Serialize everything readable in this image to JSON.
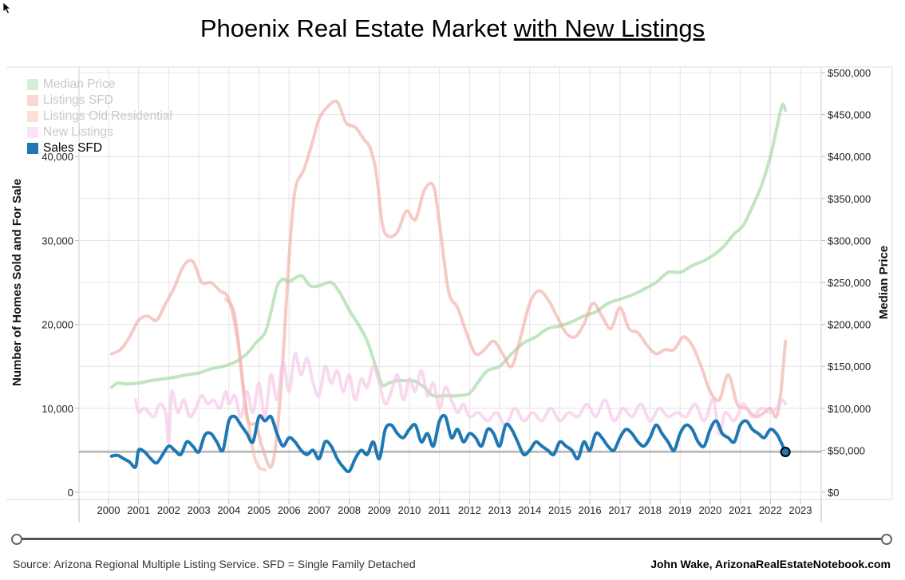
{
  "title": {
    "main": "Phoenix Real Estate Market ",
    "underlined": "with New Listings"
  },
  "legend": [
    {
      "label": "Median Price",
      "color": "#a6d8a6",
      "active": false
    },
    {
      "label": "Listings SFD",
      "color": "#f0a8a0",
      "active": false
    },
    {
      "label": "Listings Old Residential",
      "color": "#f3b7ae",
      "active": false
    },
    {
      "label": "New Listings",
      "color": "#f6c4e6",
      "active": false
    },
    {
      "label": "Sales SFD",
      "color": "#1f77b4",
      "active": true
    }
  ],
  "footer": {
    "source": "Source: Arizona Regional Multiple Listing Service. SFD = Single Family Detached",
    "credit": "John Wake, ArizonaRealEstateNotebook.com"
  },
  "chart_data": {
    "type": "line",
    "ylabel": "Number of Homes Sold and For Sale",
    "y2label": "Median Price",
    "ylim": [
      0,
      50000
    ],
    "y2lim": [
      0,
      500000
    ],
    "xlim": [
      1999.0,
      2023.7
    ],
    "y_ticks": [
      {
        "value": 0,
        "label": "0"
      },
      {
        "value": 10000,
        "label": "10,000"
      },
      {
        "value": 20000,
        "label": "20,000"
      },
      {
        "value": 30000,
        "label": "30,000"
      },
      {
        "value": 40000,
        "label": "40,000"
      }
    ],
    "y2_ticks": [
      {
        "value": 0,
        "label": "$0"
      },
      {
        "value": 50000,
        "label": "$50,000"
      },
      {
        "value": 100000,
        "label": "$100,000"
      },
      {
        "value": 150000,
        "label": "$150,000"
      },
      {
        "value": 200000,
        "label": "$200,000"
      },
      {
        "value": 250000,
        "label": "$250,000"
      },
      {
        "value": 300000,
        "label": "$300,000"
      },
      {
        "value": 350000,
        "label": "$350,000"
      },
      {
        "value": 400000,
        "label": "$400,000"
      },
      {
        "value": 450000,
        "label": "$450,000"
      },
      {
        "value": 500000,
        "label": "$500,000"
      }
    ],
    "x_ticks": [
      "2000",
      "2001",
      "2002",
      "2003",
      "2004",
      "2005",
      "2006",
      "2007",
      "2008",
      "2009",
      "2010",
      "2011",
      "2012",
      "2013",
      "2014",
      "2015",
      "2016",
      "2017",
      "2018",
      "2019",
      "2020",
      "2021",
      "2022",
      "2023"
    ],
    "reference_line": {
      "y": 4800
    },
    "series": [
      {
        "name": "Median Price",
        "axis": "right",
        "color": "#a6d8a6",
        "opacity": 0.7,
        "x": [
          2000.1,
          2000.3,
          2000.6,
          2001.0,
          2001.4,
          2001.8,
          2002.2,
          2002.6,
          2003.0,
          2003.4,
          2003.8,
          2004.2,
          2004.6,
          2004.9,
          2005.2,
          2005.4,
          2005.6,
          2005.8,
          2006.0,
          2006.4,
          2006.7,
          2007.0,
          2007.4,
          2007.7,
          2008.0,
          2008.3,
          2008.6,
          2008.9,
          2009.1,
          2009.3,
          2009.6,
          2009.9,
          2010.2,
          2010.5,
          2010.8,
          2011.2,
          2011.6,
          2012.0,
          2012.3,
          2012.6,
          2013.0,
          2013.4,
          2013.8,
          2014.2,
          2014.6,
          2015.0,
          2015.4,
          2015.8,
          2016.2,
          2016.6,
          2017.0,
          2017.4,
          2017.8,
          2018.2,
          2018.6,
          2019.0,
          2019.4,
          2019.8,
          2020.2,
          2020.5,
          2020.8,
          2021.1,
          2021.4,
          2021.7,
          2022.0,
          2022.25,
          2022.4,
          2022.5
        ],
        "y": [
          125000,
          130000,
          129000,
          130000,
          133000,
          135000,
          137000,
          140000,
          142000,
          147000,
          150000,
          155000,
          165000,
          178000,
          190000,
          215000,
          245000,
          254000,
          251000,
          258000,
          246000,
          246000,
          250000,
          237000,
          217000,
          200000,
          180000,
          148000,
          128000,
          130000,
          133000,
          133000,
          132000,
          125000,
          115000,
          115000,
          115000,
          118000,
          132000,
          145000,
          150000,
          165000,
          178000,
          185000,
          195000,
          198000,
          203000,
          210000,
          215000,
          225000,
          230000,
          235000,
          242000,
          250000,
          262000,
          262000,
          270000,
          276000,
          285000,
          295000,
          308000,
          318000,
          340000,
          365000,
          400000,
          440000,
          462000,
          455000
        ]
      },
      {
        "name": "Listings SFD",
        "axis": "left",
        "color": "#f0a8a0",
        "opacity": 0.6,
        "x": [
          2000.1,
          2000.4,
          2000.7,
          2001.0,
          2001.3,
          2001.6,
          2001.9,
          2002.2,
          2002.5,
          2002.8,
          2003.1,
          2003.4,
          2003.7,
          2004.0,
          2004.3,
          2004.6,
          2004.9,
          2005.1,
          2005.4,
          2005.6,
          2005.8,
          2006.0,
          2006.2,
          2006.5,
          2006.8,
          2007.0,
          2007.3,
          2007.6,
          2007.9,
          2008.2,
          2008.5,
          2008.7,
          2008.9,
          2009.1,
          2009.3,
          2009.6,
          2009.9,
          2010.2,
          2010.5,
          2010.8,
          2011.0,
          2011.3,
          2011.6,
          2011.9,
          2012.2,
          2012.5,
          2012.8,
          2013.1,
          2013.4,
          2013.7,
          2014.0,
          2014.3,
          2014.6,
          2014.9,
          2015.2,
          2015.5,
          2015.8,
          2016.1,
          2016.4,
          2016.7,
          2017.0,
          2017.3,
          2017.6,
          2017.9,
          2018.2,
          2018.5,
          2018.8,
          2019.1,
          2019.4,
          2019.7,
          2020.0,
          2020.3,
          2020.6,
          2020.9,
          2021.2,
          2021.5,
          2021.8,
          2022.0,
          2022.2,
          2022.35,
          2022.5
        ],
        "y": [
          16500,
          17000,
          18500,
          20500,
          21000,
          20500,
          22500,
          24500,
          27000,
          27500,
          25000,
          25000,
          24000,
          23000,
          18000,
          9000,
          8000,
          5500,
          3000,
          7000,
          16000,
          28000,
          36000,
          38500,
          42000,
          44500,
          46000,
          46500,
          44000,
          43500,
          42000,
          41000,
          38000,
          32000,
          30500,
          31000,
          33500,
          32500,
          36000,
          36500,
          32000,
          24000,
          22000,
          19000,
          16500,
          17000,
          18000,
          16500,
          15000,
          18500,
          22500,
          24000,
          23000,
          21000,
          19000,
          18500,
          20000,
          22500,
          21000,
          19500,
          22000,
          19500,
          19000,
          17500,
          16500,
          17000,
          17000,
          18500,
          17500,
          15000,
          12000,
          11000,
          14000,
          10500,
          10000,
          9000,
          9500,
          10000,
          9000,
          12000,
          18000
        ]
      },
      {
        "name": "Listings Old Residential",
        "axis": "left",
        "color": "#f3b7ae",
        "opacity": 0.6,
        "x": [
          2003.9,
          2004.2,
          2004.5,
          2004.8,
          2005.0,
          2005.2
        ],
        "y": [
          23000,
          21000,
          12000,
          5000,
          3000,
          2700
        ]
      },
      {
        "name": "New Listings",
        "axis": "left",
        "color": "#f6c4e6",
        "opacity": 0.65,
        "x": [
          2000.9,
          2001.0,
          2001.2,
          2001.5,
          2001.7,
          2001.9,
          2002.0,
          2002.1,
          2002.3,
          2002.5,
          2002.7,
          2002.9,
          2003.1,
          2003.3,
          2003.5,
          2003.7,
          2003.9,
          2004.0,
          2004.2,
          2004.4,
          2004.6,
          2004.8,
          2005.0,
          2005.2,
          2005.4,
          2005.6,
          2005.8,
          2006.0,
          2006.2,
          2006.4,
          2006.6,
          2006.8,
          2007.0,
          2007.2,
          2007.4,
          2007.6,
          2007.8,
          2008.0,
          2008.2,
          2008.4,
          2008.6,
          2008.8,
          2009.0,
          2009.2,
          2009.4,
          2009.6,
          2009.8,
          2010.0,
          2010.2,
          2010.4,
          2010.6,
          2010.8,
          2011.0,
          2011.2,
          2011.4,
          2011.6,
          2011.8,
          2012.0,
          2012.3,
          2012.6,
          2012.9,
          2013.2,
          2013.5,
          2013.8,
          2014.1,
          2014.4,
          2014.7,
          2015.0,
          2015.3,
          2015.6,
          2015.9,
          2016.2,
          2016.5,
          2016.8,
          2017.1,
          2017.4,
          2017.7,
          2018.0,
          2018.3,
          2018.6,
          2018.9,
          2019.2,
          2019.5,
          2019.8,
          2020.1,
          2020.3,
          2020.5,
          2020.8,
          2021.1,
          2021.4,
          2021.7,
          2022.0,
          2022.2,
          2022.4,
          2022.5
        ],
        "y": [
          11000,
          9500,
          10000,
          9000,
          10500,
          9500,
          6000,
          12000,
          9500,
          11000,
          9000,
          10000,
          11500,
          10500,
          11000,
          10000,
          12000,
          10500,
          11500,
          9000,
          12000,
          9500,
          13000,
          9000,
          14000,
          11000,
          15500,
          12000,
          16500,
          14000,
          16000,
          13000,
          11500,
          15000,
          13000,
          14500,
          12000,
          14000,
          11000,
          13500,
          12500,
          15000,
          13000,
          10500,
          12000,
          14000,
          11000,
          13500,
          12000,
          14500,
          11500,
          13000,
          10000,
          12500,
          11000,
          9500,
          10500,
          9000,
          9500,
          8500,
          9500,
          8000,
          10000,
          8500,
          9500,
          8500,
          10000,
          8500,
          9500,
          9000,
          10500,
          9000,
          11000,
          8500,
          10000,
          9000,
          10500,
          8500,
          10000,
          9000,
          9500,
          9000,
          10500,
          8500,
          11000,
          7000,
          9500,
          8500,
          10500,
          9000,
          10000,
          9500,
          10000,
          11000,
          10500
        ]
      },
      {
        "name": "Sales SFD",
        "axis": "left",
        "color": "#1f77b4",
        "opacity": 1,
        "x": [
          2000.1,
          2000.3,
          2000.5,
          2000.7,
          2000.9,
          2001.0,
          2001.2,
          2001.4,
          2001.6,
          2001.8,
          2002.0,
          2002.2,
          2002.4,
          2002.6,
          2002.8,
          2003.0,
          2003.2,
          2003.4,
          2003.6,
          2003.8,
          2004.0,
          2004.2,
          2004.4,
          2004.6,
          2004.8,
          2005.0,
          2005.2,
          2005.4,
          2005.6,
          2005.8,
          2006.0,
          2006.2,
          2006.4,
          2006.6,
          2006.8,
          2007.0,
          2007.2,
          2007.4,
          2007.6,
          2007.8,
          2008.0,
          2008.2,
          2008.4,
          2008.6,
          2008.8,
          2009.0,
          2009.2,
          2009.4,
          2009.6,
          2009.8,
          2010.0,
          2010.2,
          2010.4,
          2010.6,
          2010.8,
          2011.0,
          2011.2,
          2011.4,
          2011.6,
          2011.8,
          2012.0,
          2012.2,
          2012.4,
          2012.6,
          2012.8,
          2013.0,
          2013.2,
          2013.4,
          2013.6,
          2013.8,
          2014.0,
          2014.2,
          2014.4,
          2014.6,
          2014.8,
          2015.0,
          2015.2,
          2015.4,
          2015.6,
          2015.8,
          2016.0,
          2016.2,
          2016.4,
          2016.6,
          2016.8,
          2017.0,
          2017.2,
          2017.4,
          2017.6,
          2017.8,
          2018.0,
          2018.2,
          2018.4,
          2018.6,
          2018.8,
          2019.0,
          2019.2,
          2019.4,
          2019.6,
          2019.8,
          2020.0,
          2020.2,
          2020.4,
          2020.6,
          2020.8,
          2021.0,
          2021.2,
          2021.4,
          2021.6,
          2021.8,
          2022.0,
          2022.2,
          2022.35,
          2022.5
        ],
        "y": [
          4300,
          4400,
          4000,
          3600,
          3000,
          5000,
          4800,
          4000,
          3500,
          4500,
          5500,
          5000,
          4500,
          6000,
          5500,
          4800,
          6800,
          7000,
          6000,
          5000,
          8500,
          9000,
          8000,
          7000,
          6000,
          9000,
          8500,
          9000,
          7000,
          5500,
          6500,
          6000,
          5000,
          4500,
          5000,
          4000,
          6000,
          5500,
          4000,
          3000,
          2500,
          4000,
          5000,
          4500,
          6000,
          4000,
          7500,
          8000,
          7000,
          6500,
          7500,
          8000,
          6000,
          7000,
          5500,
          8500,
          9000,
          6500,
          7500,
          6000,
          7000,
          6500,
          5500,
          7500,
          7000,
          5500,
          8000,
          7500,
          6000,
          4500,
          5000,
          6000,
          5500,
          5000,
          4500,
          6000,
          5500,
          5000,
          4000,
          6000,
          5000,
          7000,
          6500,
          5500,
          5000,
          6500,
          7500,
          7000,
          6000,
          5500,
          6500,
          8000,
          7000,
          6000,
          5000,
          7000,
          8000,
          7500,
          6000,
          5500,
          7500,
          8500,
          7000,
          6500,
          6000,
          8000,
          8500,
          7500,
          7000,
          6500,
          7500,
          7000,
          6000,
          4800
        ]
      }
    ]
  }
}
